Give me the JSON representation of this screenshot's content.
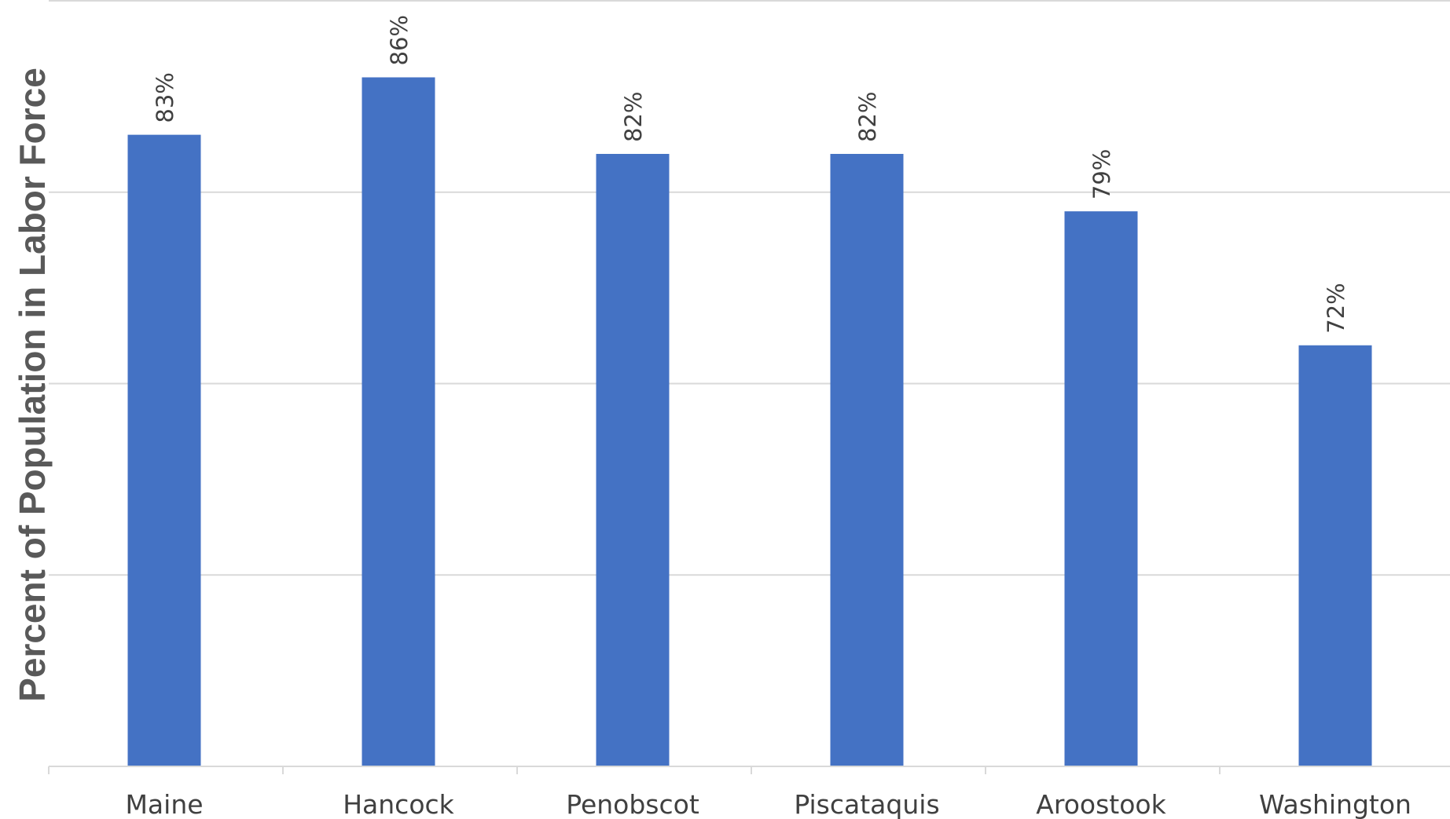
{
  "chart_data": {
    "type": "bar",
    "title": "",
    "xlabel": "",
    "ylabel": "Percent of Population in Labor Force",
    "categories": [
      "Maine",
      "Hancock",
      "Penobscot",
      "Piscataquis",
      "Aroostook",
      "Washington"
    ],
    "values": [
      83,
      86,
      82,
      82,
      79,
      72
    ],
    "data_labels": [
      "83%",
      "86%",
      "82%",
      "82%",
      "79%",
      "72%"
    ],
    "ylim": [
      50,
      90
    ],
    "y_gridlines": [
      50,
      60,
      70,
      80,
      90
    ],
    "grid": true,
    "legend": "none",
    "colors": {
      "bar": "#4472c4",
      "gridline": "#d9d9d9",
      "label_text": "#404040",
      "axis_title": "#595959"
    }
  }
}
